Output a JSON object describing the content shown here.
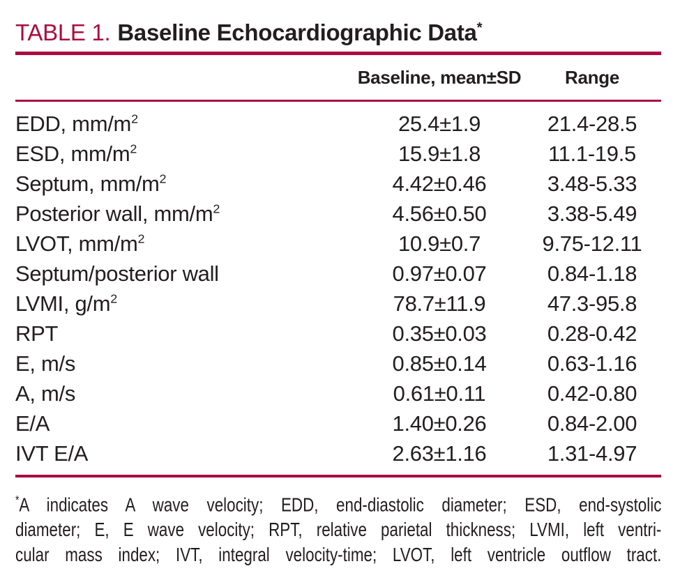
{
  "accent_color": "#AB0D3E",
  "title": {
    "label": "TABLE 1.",
    "text": "Baseline Echocardiographic Data",
    "sup": "*"
  },
  "table": {
    "columns": [
      {
        "key": "parameter",
        "label": ""
      },
      {
        "key": "baseline",
        "label": "Baseline, mean±SD"
      },
      {
        "key": "range",
        "label": "Range"
      }
    ],
    "rows": [
      {
        "parameter": "EDD, mm/m",
        "sup": "2",
        "baseline": "25.4±1.9",
        "range": "21.4-28.5"
      },
      {
        "parameter": "ESD, mm/m",
        "sup": "2",
        "baseline": "15.9±1.8",
        "range": "11.1-19.5"
      },
      {
        "parameter": "Septum, mm/m",
        "sup": "2",
        "baseline": "4.42±0.46",
        "range": "3.48-5.33"
      },
      {
        "parameter": "Posterior wall, mm/m",
        "sup": "2",
        "baseline": "4.56±0.50",
        "range": "3.38-5.49"
      },
      {
        "parameter": "LVOT, mm/m",
        "sup": "2",
        "baseline": "10.9±0.7",
        "range": "9.75-12.11"
      },
      {
        "parameter": "Septum/posterior wall",
        "sup": "",
        "baseline": "0.97±0.07",
        "range": "0.84-1.18"
      },
      {
        "parameter": "LVMI, g/m",
        "sup": "2",
        "baseline": "78.7±11.9",
        "range": "47.3-95.8"
      },
      {
        "parameter": "RPT",
        "sup": "",
        "baseline": "0.35±0.03",
        "range": "0.28-0.42"
      },
      {
        "parameter": "E, m/s",
        "sup": "",
        "baseline": "0.85±0.14",
        "range": "0.63-1.16"
      },
      {
        "parameter": "A, m/s",
        "sup": "",
        "baseline": "0.61±0.11",
        "range": "0.42-0.80"
      },
      {
        "parameter": "E/A",
        "sup": "",
        "baseline": "1.40±0.26",
        "range": "0.84-2.00"
      },
      {
        "parameter": "IVT E/A",
        "sup": "",
        "baseline": "2.63±1.16",
        "range": "1.31-4.97"
      }
    ]
  },
  "footnote": {
    "asterisk": "*",
    "lines": [
      "A indicates A wave velocity; EDD, end-diastolic diameter; ESD, end-systolic",
      "diameter; E, E wave velocity; RPT, relative parietal thickness; LVMI, left ventri-",
      "cular mass index; IVT, integral velocity-time; LVOT, left ventricle outflow tract."
    ]
  }
}
